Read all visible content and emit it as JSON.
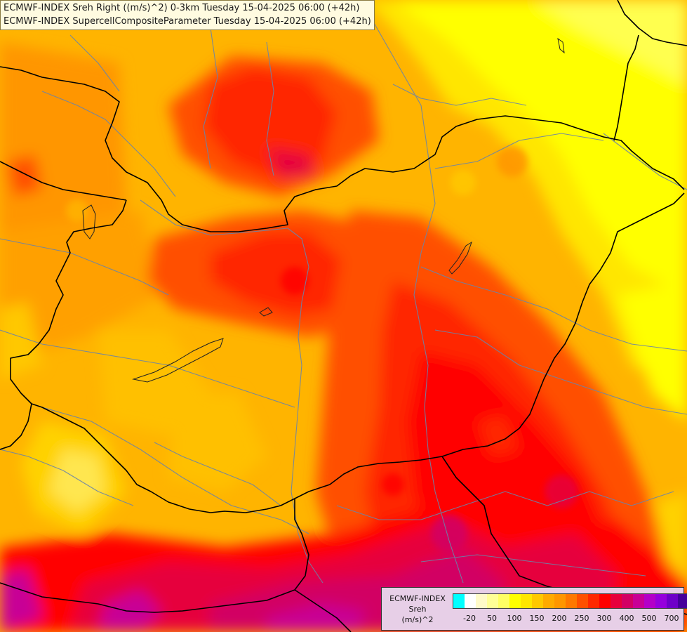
{
  "title": {
    "line1": "ECMWF-INDEX Sreh Right ((m/s)^2) 0-3km Tuesday 15-04-2025 06:00 (+42h)",
    "line2": "ECMWF-INDEX SupercellCompositeParameter Tuesday 15-04-2025 06:00 (+42h)"
  },
  "legend": {
    "source": "ECMWF-INDEX",
    "variable": "Sreh",
    "unit": "(m/s)^2",
    "colors": [
      "#00ffff",
      "#ffffff",
      "#fffac8",
      "#ffff96",
      "#ffff64",
      "#ffff00",
      "#ffe600",
      "#ffc800",
      "#ffaa00",
      "#ff9600",
      "#ff7800",
      "#ff5000",
      "#ff2800",
      "#ff0000",
      "#e6003c",
      "#d20064",
      "#c80096",
      "#b400c8",
      "#9600dc",
      "#6e00c8",
      "#46009b",
      "#1e0078"
    ],
    "tick_labels": [
      "-20",
      "50",
      "100",
      "150",
      "200",
      "250",
      "300",
      "400",
      "500",
      "700"
    ]
  }
}
